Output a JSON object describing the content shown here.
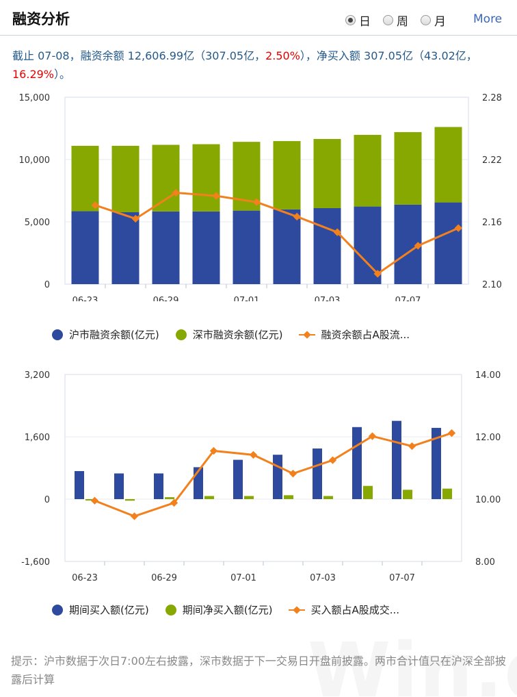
{
  "header": {
    "title": "融资分析",
    "radios": [
      {
        "label": "日",
        "selected": true
      },
      {
        "label": "周",
        "selected": false
      },
      {
        "label": "月",
        "selected": false
      }
    ],
    "more_label": "More"
  },
  "summary": {
    "part1": "截止 07-08，融资余额 12,606.99亿（307.05亿，",
    "pct1": "2.50%",
    "part2": "），净买入额 307.05亿（43.02亿，",
    "pct2": "16.29%",
    "part3": "）。"
  },
  "colors": {
    "blue": "#2e4a9e",
    "green": "#86a800",
    "orange": "#f2811d",
    "red": "#e60000"
  },
  "chart_data": [
    {
      "type": "bar",
      "stacked": true,
      "categories": [
        "06-23",
        "",
        "06-29",
        "",
        "07-01",
        "",
        "07-03",
        "",
        "07-07",
        ""
      ],
      "x_tick_labels": [
        "06-23",
        "06-29",
        "07-01",
        "07-03",
        "07-07"
      ],
      "series": [
        {
          "name": "沪市融资余额(亿元)",
          "kind": "bar",
          "axis": "left",
          "values": [
            5850,
            5770,
            5830,
            5830,
            5900,
            6000,
            6100,
            6230,
            6380,
            6560
          ]
        },
        {
          "name": "深市融资余额(亿元)",
          "kind": "bar",
          "axis": "left",
          "values": [
            5250,
            5330,
            5350,
            5400,
            5520,
            5480,
            5550,
            5750,
            5820,
            6050
          ]
        },
        {
          "name": "融资余额占A股流...",
          "kind": "line",
          "axis": "right",
          "values": [
            2.176,
            2.163,
            2.188,
            2.185,
            2.179,
            2.165,
            2.15,
            2.11,
            2.137,
            2.154
          ]
        }
      ],
      "y_left_ticks": [
        "15,000",
        "10,000",
        "5,000",
        "0"
      ],
      "ylim_left": [
        0,
        15000
      ],
      "y_right_ticks": [
        "2.28",
        "2.22",
        "2.16",
        "2.10"
      ],
      "ylim_right": [
        2.1,
        2.28
      ],
      "grid": true,
      "legend_position": "bottom"
    },
    {
      "type": "bar",
      "stacked": false,
      "categories": [
        "06-23",
        "",
        "06-29",
        "",
        "07-01",
        "",
        "07-03",
        "",
        "07-07",
        ""
      ],
      "x_tick_labels": [
        "06-23",
        "06-29",
        "07-01",
        "07-03",
        "07-07"
      ],
      "series": [
        {
          "name": "期间买入额(亿元)",
          "kind": "bar",
          "axis": "left",
          "values": [
            720,
            660,
            660,
            820,
            1010,
            1140,
            1300,
            1850,
            2010,
            1830
          ]
        },
        {
          "name": "期间净买入额(亿元)",
          "kind": "bar",
          "axis": "left",
          "values": [
            0,
            -40,
            50,
            80,
            80,
            100,
            80,
            340,
            240,
            270
          ]
        },
        {
          "name": "买入额占A股成交...",
          "kind": "line",
          "axis": "right",
          "values": [
            9.95,
            9.45,
            9.88,
            11.55,
            11.42,
            10.82,
            11.25,
            12.02,
            11.7,
            12.12
          ]
        }
      ],
      "y_left_ticks": [
        "3,200",
        "1,600",
        "0",
        "-1,600"
      ],
      "ylim_left": [
        -1600,
        3200
      ],
      "y_right_ticks": [
        "14.00",
        "12.00",
        "10.00",
        "8.00"
      ],
      "ylim_right": [
        8,
        14
      ],
      "grid": true,
      "legend_position": "bottom"
    }
  ],
  "footer": {
    "note": "提示：沪市数据于次日7:00左右披露，深市数据于下一交易日开盘前披露。两市合计值只在沪深全部披露后计算",
    "watermark": "Win.d"
  }
}
